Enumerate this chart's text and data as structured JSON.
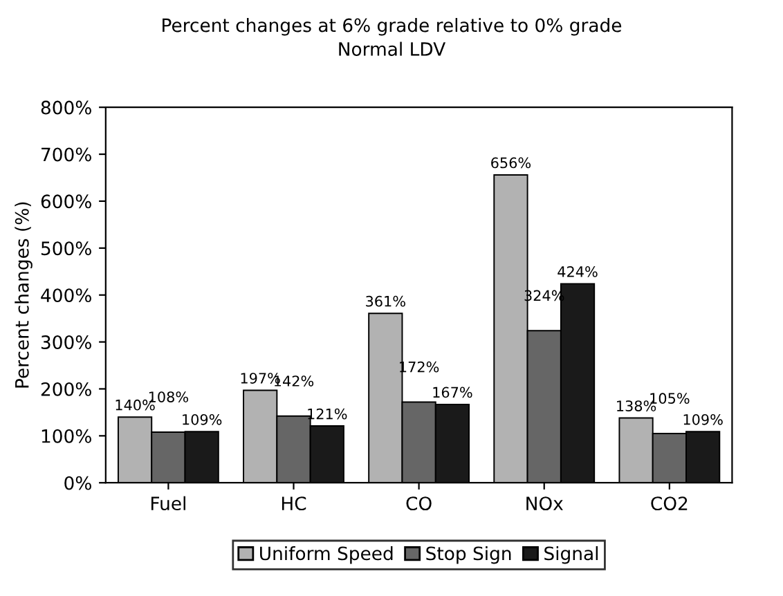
{
  "chart_data": {
    "type": "bar",
    "title": "Percent changes at 6% grade relative to 0% grade",
    "subtitle": "Normal LDV",
    "ylabel": "Percent changes (%)",
    "categories": [
      "Fuel",
      "HC",
      "CO",
      "NOx",
      "CO2"
    ],
    "series": [
      {
        "name": "Uniform Speed",
        "color": "#b2b2b2",
        "values": [
          140,
          197,
          361,
          656,
          138
        ],
        "value_labels": [
          "140%",
          "197%",
          "361%",
          "656%",
          "138%"
        ]
      },
      {
        "name": "Stop Sign",
        "color": "#666666",
        "values": [
          108,
          142,
          172,
          324,
          105
        ],
        "value_labels": [
          "108%",
          "142%",
          "172%",
          "324%",
          "105%"
        ]
      },
      {
        "name": "Signal",
        "color": "#1a1a1a",
        "values": [
          109,
          121,
          167,
          424,
          109
        ],
        "value_labels": [
          "109%",
          "121%",
          "167%",
          "424%",
          "109%"
        ]
      }
    ],
    "ylim": [
      0,
      800
    ],
    "yticks": [
      {
        "value": 0,
        "label": "0%"
      },
      {
        "value": 100,
        "label": "100%"
      },
      {
        "value": 200,
        "label": "200%"
      },
      {
        "value": 300,
        "label": "300%"
      },
      {
        "value": 400,
        "label": "400%"
      },
      {
        "value": 500,
        "label": "500%"
      },
      {
        "value": 600,
        "label": "600%"
      },
      {
        "value": 700,
        "label": "700%"
      },
      {
        "value": 800,
        "label": "800%"
      }
    ],
    "grid": false,
    "legend": "bottom"
  }
}
